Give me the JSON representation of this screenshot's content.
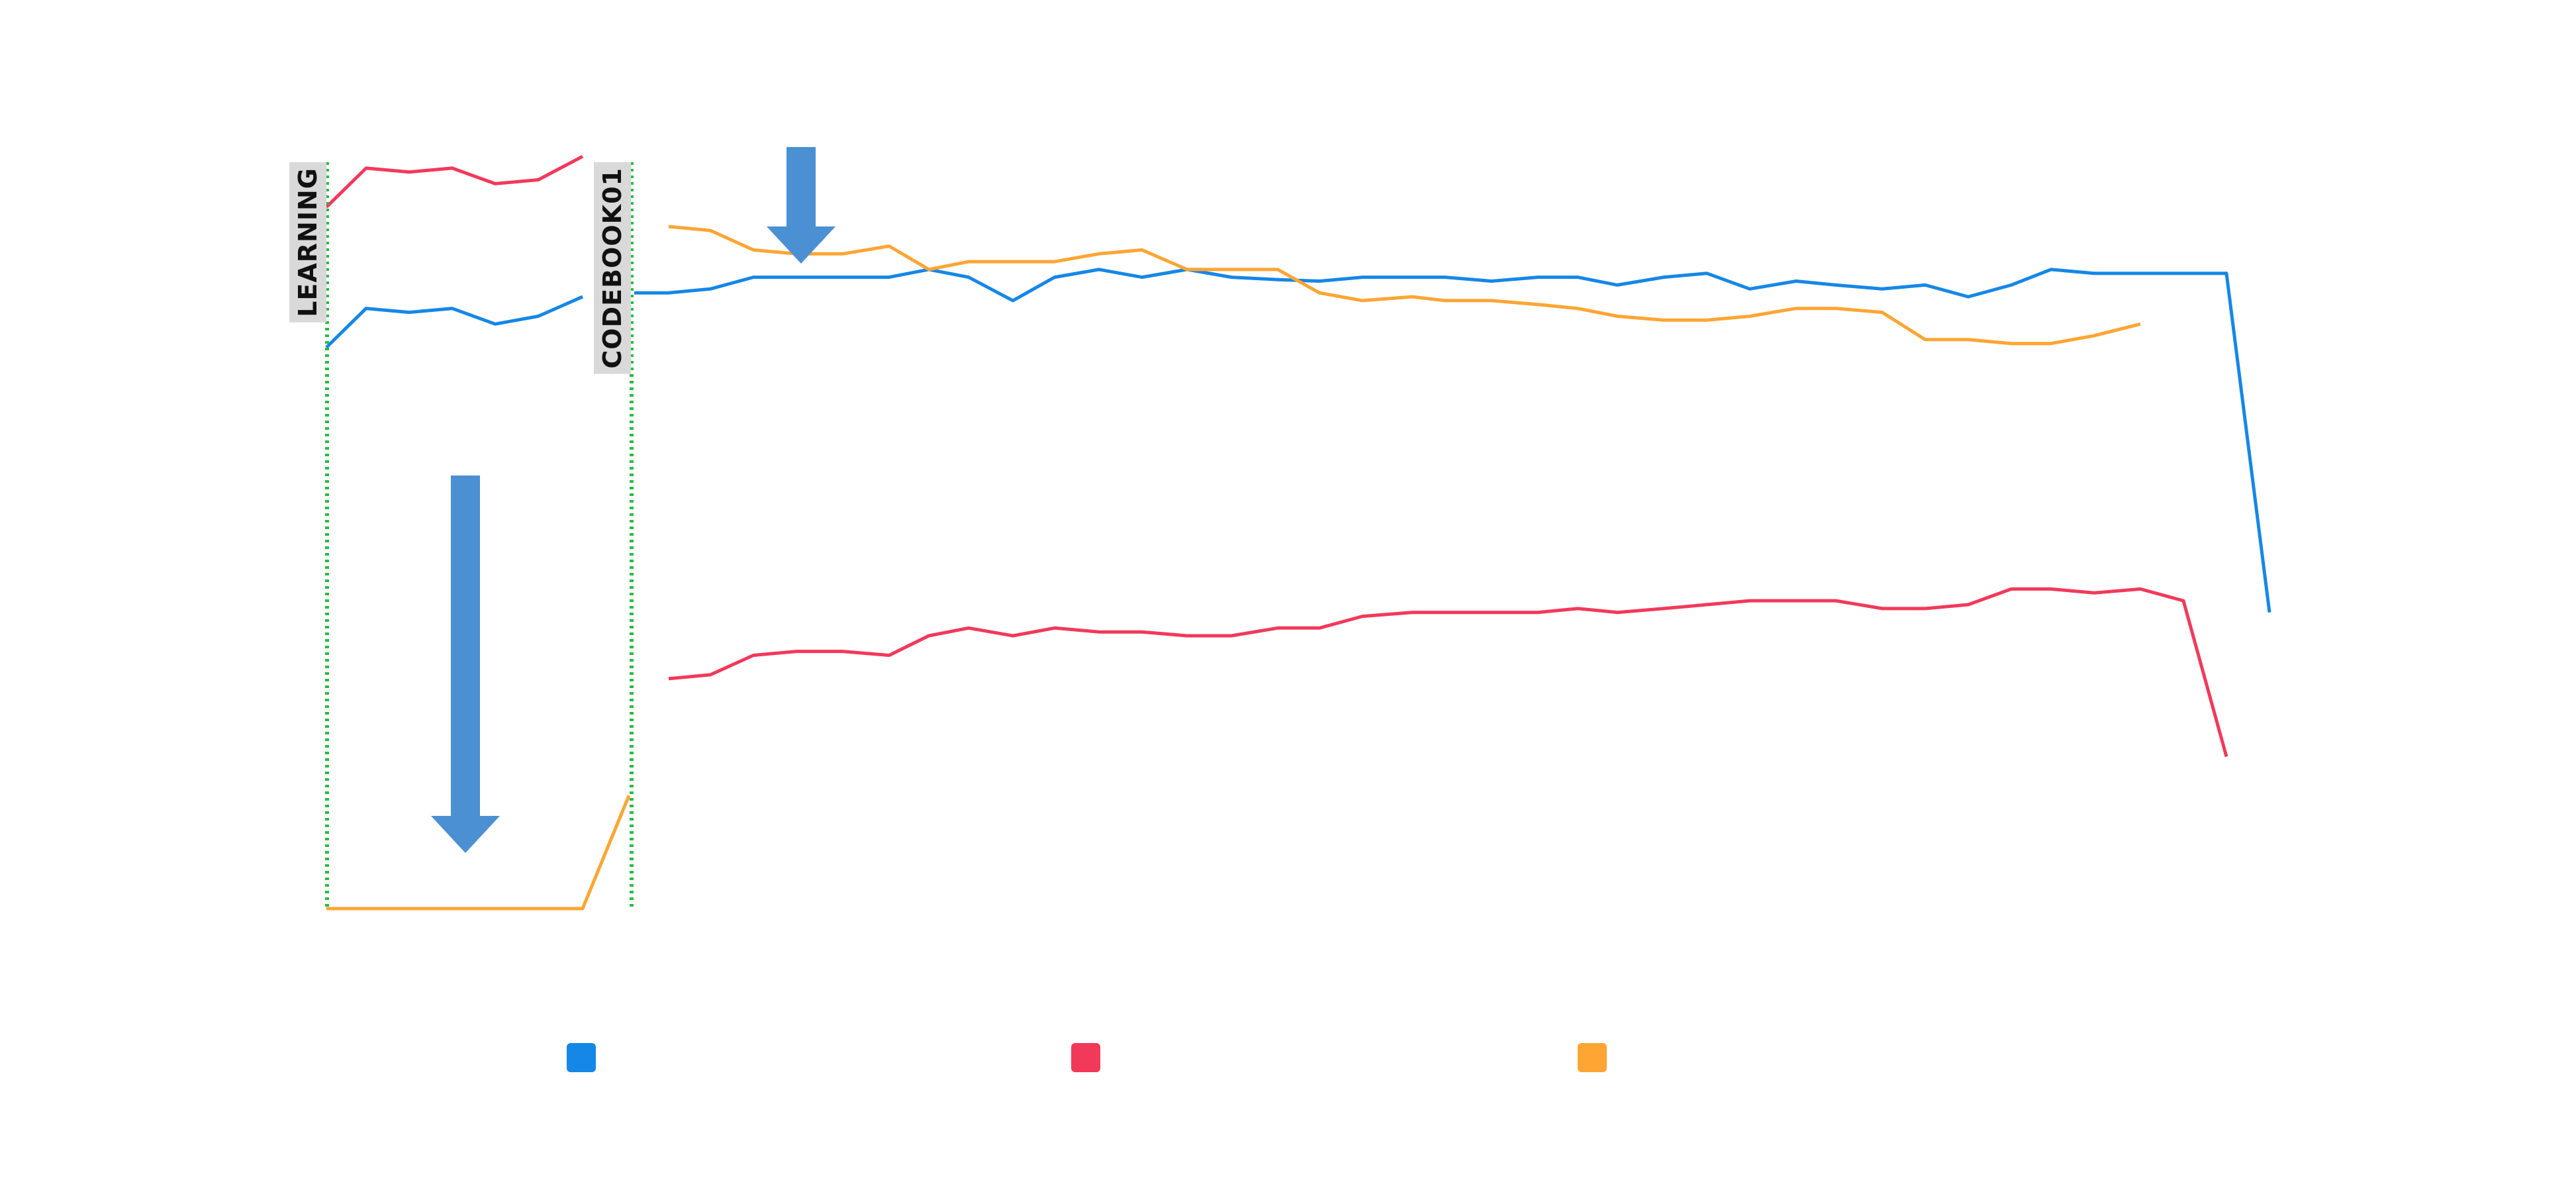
{
  "chart_data": {
    "type": "line",
    "title": "",
    "xlabel": "",
    "ylabel": "",
    "ylim": [
      0,
      100
    ],
    "grid": false,
    "legend_position": "bottom",
    "x": [
      0,
      1,
      2,
      3,
      4,
      5,
      6,
      7,
      8,
      9,
      10,
      11,
      12,
      13,
      14,
      15,
      16,
      17,
      18,
      19,
      20,
      21,
      22,
      23,
      24,
      25,
      26,
      27,
      28,
      29,
      30,
      31,
      32,
      33,
      34,
      35,
      36,
      37,
      38,
      39,
      40,
      41,
      42,
      43,
      44,
      45,
      46,
      47
    ],
    "series": [
      {
        "color": "#1587e6",
        "values": [
          72,
          77,
          76.5,
          77,
          75,
          76,
          78.5,
          null,
          79,
          79,
          79.5,
          81,
          81,
          81,
          81,
          82,
          81,
          78,
          81,
          82,
          81,
          82,
          81,
          80.7,
          80.5,
          81,
          81,
          81,
          80.5,
          81,
          81,
          80,
          81,
          81.5,
          79.5,
          80.5,
          80,
          79.5,
          80,
          78.5,
          80,
          82,
          81.5,
          81.5,
          81.5,
          81.5,
          81.5,
          38
        ]
      },
      {
        "color": "#f2395a",
        "values": [
          90,
          95,
          94.5,
          95,
          93,
          93.5,
          96.5,
          null,
          null,
          29.5,
          30,
          32.5,
          33,
          33,
          32.5,
          35,
          36,
          35,
          36,
          35.5,
          35.5,
          35,
          35,
          36,
          36,
          37.5,
          38,
          38,
          38,
          38,
          38.5,
          38,
          38.5,
          39,
          39.5,
          39.5,
          39.5,
          38.5,
          38.5,
          39,
          41,
          41,
          40.5,
          41,
          39.5,
          19.5,
          null,
          null
        ]
      },
      {
        "color": "#ffa534",
        "values": [
          0,
          0,
          0,
          0,
          0,
          0,
          0,
          14.5,
          null,
          87.5,
          87,
          84.5,
          84,
          84,
          85,
          82,
          83,
          83,
          83,
          84,
          84.5,
          82,
          82,
          82,
          79,
          78,
          78.5,
          78,
          78,
          77.5,
          77,
          76,
          75.5,
          75.5,
          76,
          77,
          77,
          76.5,
          73,
          73,
          72.5,
          72.5,
          73.5,
          75,
          null,
          null,
          null,
          null
        ]
      }
    ],
    "annotations": [
      {
        "type": "vline",
        "label": "LEARNING",
        "color": "#2bbb43",
        "style": "dotted"
      },
      {
        "type": "vline",
        "label": "CODEBOOK01",
        "color": "#2bbb43",
        "style": "dotted"
      },
      {
        "type": "arrow",
        "direction": "down",
        "color": "#4a90d2",
        "size": "large"
      },
      {
        "type": "arrow",
        "direction": "down",
        "color": "#4a90d2",
        "size": "small"
      }
    ],
    "legend": [
      {
        "color": "#1587e6",
        "label": ""
      },
      {
        "color": "#f2395a",
        "label": ""
      },
      {
        "color": "#ffa534",
        "label": ""
      }
    ]
  }
}
